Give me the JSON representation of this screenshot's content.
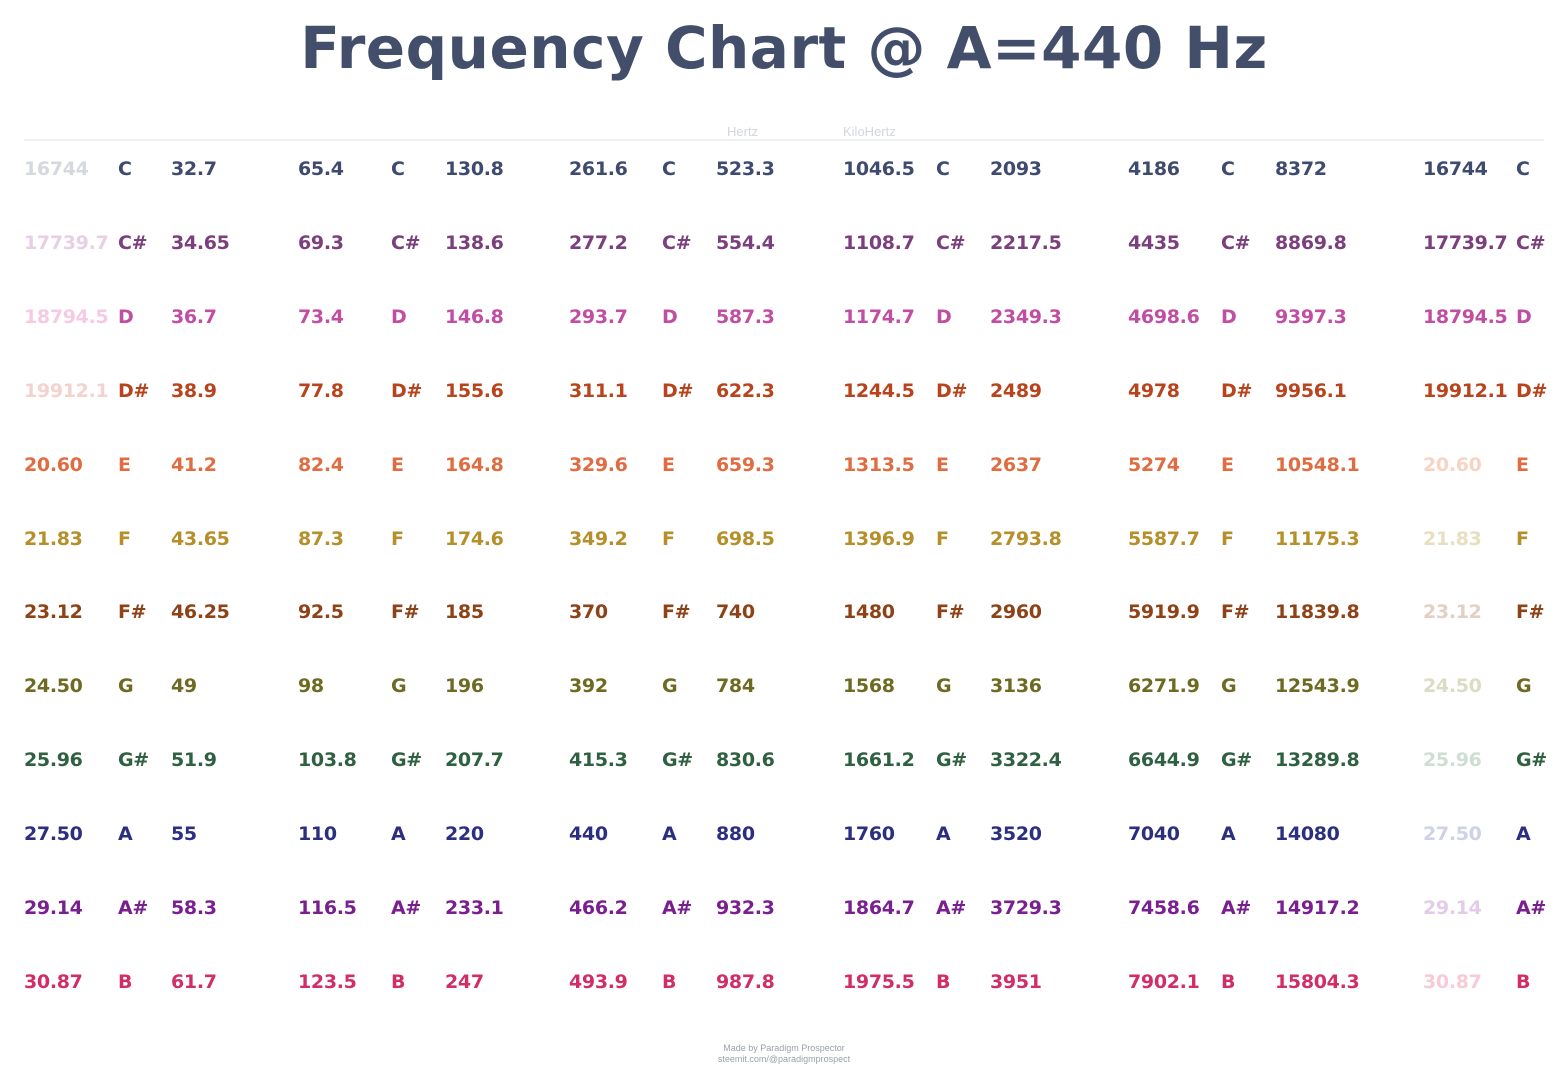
{
  "title": "Frequency Chart @ A=440 Hz",
  "header_labels": {
    "hertz": "Hertz",
    "kilohertz": "KiloHertz"
  },
  "colors": {
    "title": "#434e6a",
    "rows": [
      "#3e4a6e",
      "#7a3f7c",
      "#c04ea3",
      "#b8441e",
      "#df6d41",
      "#b5902a",
      "#8d4217",
      "#6f6a22",
      "#2e6041",
      "#2c2f80",
      "#7a1f8f",
      "#d12e68"
    ],
    "faded": [
      "#d5d8de",
      "#e7cfe4",
      "#f5cbe4",
      "#f3d2d0",
      "#f6d4c4",
      "#e8dfc2",
      "#e4cfc4",
      "#dcdcc4",
      "#cfded4",
      "#cfd2e6",
      "#e3cbe9",
      "#f6cbd7"
    ]
  },
  "rows": [
    {
      "note": "C",
      "values": [
        "16744",
        "32.7",
        "65.4",
        "130.8",
        "261.6",
        "523.3",
        "1046.5",
        "2093",
        "4186",
        "8372",
        "16744"
      ]
    },
    {
      "note": "C#",
      "values": [
        "17739.7",
        "34.65",
        "69.3",
        "138.6",
        "277.2",
        "554.4",
        "1108.7",
        "2217.5",
        "4435",
        "8869.8",
        "17739.7"
      ]
    },
    {
      "note": "D",
      "values": [
        "18794.5",
        "36.7",
        "73.4",
        "146.8",
        "293.7",
        "587.3",
        "1174.7",
        "2349.3",
        "4698.6",
        "9397.3",
        "18794.5"
      ]
    },
    {
      "note": "D#",
      "values": [
        "19912.1",
        "38.9",
        "77.8",
        "155.6",
        "311.1",
        "622.3",
        "1244.5",
        "2489",
        "4978",
        "9956.1",
        "19912.1"
      ]
    },
    {
      "note": "E",
      "values": [
        "20.60",
        "41.2",
        "82.4",
        "164.8",
        "329.6",
        "659.3",
        "1313.5",
        "2637",
        "5274",
        "10548.1",
        "20.60"
      ]
    },
    {
      "note": "F",
      "values": [
        "21.83",
        "43.65",
        "87.3",
        "174.6",
        "349.2",
        "698.5",
        "1396.9",
        "2793.8",
        "5587.7",
        "11175.3",
        "21.83"
      ]
    },
    {
      "note": "F#",
      "values": [
        "23.12",
        "46.25",
        "92.5",
        "185",
        "370",
        "740",
        "1480",
        "2960",
        "5919.9",
        "11839.8",
        "23.12"
      ]
    },
    {
      "note": "G",
      "values": [
        "24.50",
        "49",
        "98",
        "196",
        "392",
        "784",
        "1568",
        "3136",
        "6271.9",
        "12543.9",
        "24.50"
      ]
    },
    {
      "note": "G#",
      "values": [
        "25.96",
        "51.9",
        "103.8",
        "207.7",
        "415.3",
        "830.6",
        "1661.2",
        "3322.4",
        "6644.9",
        "13289.8",
        "25.96"
      ]
    },
    {
      "note": "A",
      "values": [
        "27.50",
        "55",
        "110",
        "220",
        "440",
        "880",
        "1760",
        "3520",
        "7040",
        "14080",
        "27.50"
      ]
    },
    {
      "note": "A#",
      "values": [
        "29.14",
        "58.3",
        "116.5",
        "233.1",
        "466.2",
        "932.3",
        "1864.7",
        "3729.3",
        "7458.6",
        "14917.2",
        "29.14"
      ]
    },
    {
      "note": "B",
      "values": [
        "30.87",
        "61.7",
        "123.5",
        "247",
        "493.9",
        "987.8",
        "1975.5",
        "3951",
        "7902.1",
        "15804.3",
        "30.87"
      ]
    }
  ],
  "credit": {
    "line1": "Made by Paradigm Prospector",
    "line2": "steemit.com/@paradigmprospect"
  }
}
